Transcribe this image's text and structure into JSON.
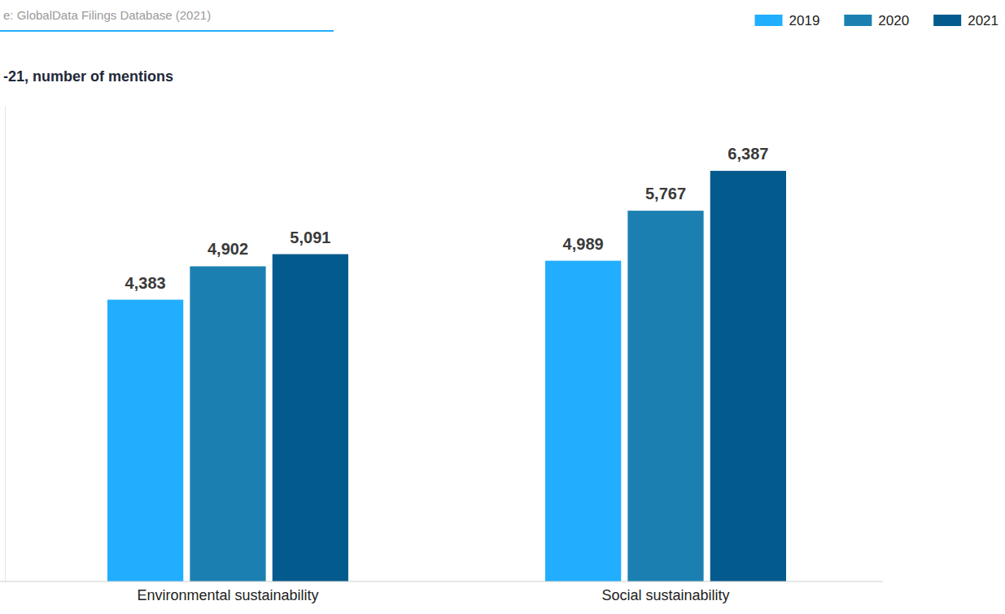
{
  "chart_data": {
    "type": "bar",
    "title": "-21, number of mentions",
    "annotations": [
      "e: GlobalData Filings Database (2021)"
    ],
    "categories": [
      "Environmental sustainability",
      "Social sustainability"
    ],
    "series": [
      {
        "name": "2019",
        "color": "#21aeff",
        "values": [
          4383,
          4989
        ],
        "value_labels": [
          "4,383",
          "4,989"
        ]
      },
      {
        "name": "2020",
        "color": "#1b80b1",
        "values": [
          4902,
          5767
        ],
        "value_labels": [
          "4,902",
          "5,767"
        ]
      },
      {
        "name": "2021",
        "color": "#035a8c",
        "values": [
          5091,
          6387
        ],
        "value_labels": [
          "5,091",
          "6,387"
        ]
      }
    ],
    "ylim": [
      0,
      7400
    ],
    "yticks": [],
    "tick_labels": "x",
    "data_labels": true,
    "legend": "top-right",
    "grid": false
  }
}
